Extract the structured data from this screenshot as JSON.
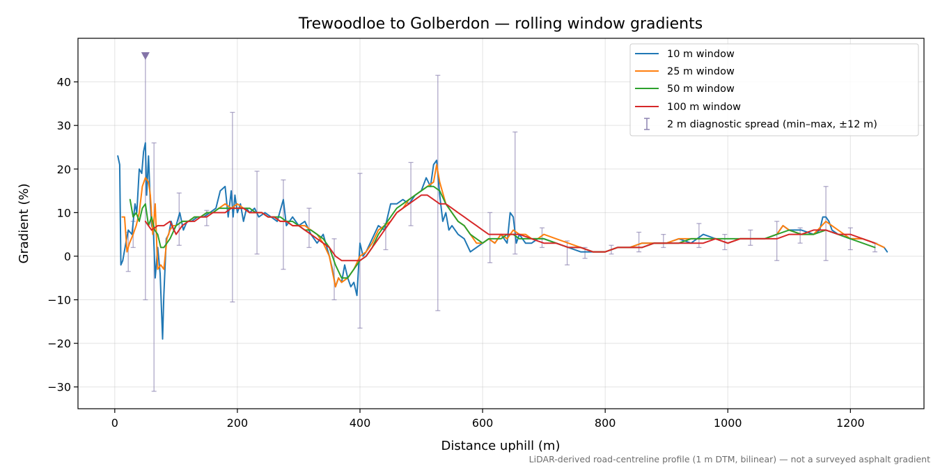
{
  "chart_data": {
    "type": "line",
    "title": "Trewoodloe to Golberdon — rolling window gradients",
    "xlabel": "Distance uphill (m)",
    "ylabel": "Gradient (%)",
    "xlim": [
      -60,
      1320
    ],
    "ylim": [
      -35,
      50
    ],
    "xticks": [
      0,
      200,
      400,
      600,
      800,
      1000,
      1200
    ],
    "xtick_labels": [
      "0",
      "200",
      "400",
      "600",
      "800",
      "1000",
      "1200"
    ],
    "yticks": [
      -30,
      -20,
      -10,
      0,
      10,
      20,
      30,
      40
    ],
    "ytick_labels": [
      "−30",
      "−20",
      "−10",
      "0",
      "10",
      "20",
      "30",
      "40"
    ],
    "grid": true,
    "legend_position": "top-right",
    "footnote": "LiDAR-derived road-centreline profile (1 m DTM, bilinear) — not a surveyed asphalt gradient",
    "colors": {
      "10 m": "#1f77b4",
      "25 m": "#ff7f0e",
      "50 m": "#2ca02c",
      "100 m": "#d62728",
      "spread": "#8c83b0",
      "marker": "#8474a8"
    },
    "series": [
      {
        "name": "10 m window",
        "x": [
          5,
          8,
          10,
          13,
          18,
          22,
          28,
          33,
          36,
          40,
          44,
          47,
          50,
          52,
          55,
          58,
          60,
          63,
          66,
          70,
          74,
          78,
          80,
          84,
          88,
          92,
          96,
          100,
          106,
          112,
          118,
          125,
          135,
          145,
          155,
          165,
          172,
          180,
          185,
          190,
          193,
          196,
          200,
          205,
          210,
          215,
          220,
          228,
          235,
          245,
          255,
          265,
          275,
          280,
          290,
          300,
          310,
          320,
          330,
          340,
          350,
          355,
          360,
          365,
          370,
          375,
          380,
          385,
          390,
          395,
          400,
          405,
          410,
          420,
          430,
          440,
          450,
          460,
          470,
          480,
          490,
          500,
          508,
          515,
          520,
          525,
          530,
          535,
          540,
          545,
          550,
          560,
          570,
          580,
          590,
          600,
          610,
          620,
          630,
          640,
          645,
          650,
          655,
          660,
          670,
          680,
          690,
          700,
          720,
          740,
          760,
          780,
          800,
          820,
          840,
          860,
          880,
          900,
          920,
          940,
          960,
          980,
          1000,
          1020,
          1040,
          1060,
          1080,
          1090,
          1100,
          1120,
          1140,
          1150,
          1155,
          1160,
          1165,
          1170,
          1180,
          1200,
          1220,
          1240,
          1255,
          1260
        ],
        "y": [
          23,
          21,
          -2,
          -1,
          3,
          6,
          5,
          12,
          10,
          20,
          19,
          24,
          26,
          14,
          23,
          12,
          7,
          6,
          -5,
          2,
          -4,
          -19,
          -9,
          4,
          5,
          8,
          6,
          7,
          10,
          6,
          8,
          8,
          9,
          9,
          10,
          11,
          15,
          16,
          9,
          15,
          9,
          14,
          10,
          12,
          8,
          11,
          10,
          11,
          9,
          10,
          9,
          8,
          13,
          7,
          9,
          7,
          8,
          5,
          3,
          5,
          0,
          -3,
          -7,
          -5,
          -6,
          -2,
          -5,
          -7,
          -6,
          -9,
          3,
          0,
          1,
          4,
          7,
          6,
          12,
          12,
          13,
          12,
          14,
          15,
          18,
          16,
          21,
          22,
          14,
          8,
          10,
          6,
          7,
          5,
          4,
          1,
          2,
          3,
          4,
          3,
          5,
          3,
          10,
          9,
          3,
          5,
          3,
          3,
          4,
          4,
          3,
          2,
          1,
          1,
          1,
          2,
          2,
          3,
          3,
          3,
          4,
          3,
          5,
          4,
          3,
          4,
          4,
          4,
          5,
          7,
          6,
          6,
          5,
          6,
          9,
          9,
          8,
          6,
          5,
          4,
          4,
          3,
          2,
          1
        ]
      },
      {
        "name": "25 m window",
        "x": [
          12,
          16,
          20,
          24,
          30,
          35,
          40,
          45,
          50,
          55,
          58,
          62,
          66,
          70,
          75,
          80,
          85,
          90,
          95,
          100,
          110,
          120,
          130,
          140,
          150,
          160,
          170,
          180,
          190,
          200,
          210,
          220,
          230,
          240,
          250,
          260,
          270,
          280,
          290,
          300,
          310,
          320,
          330,
          340,
          350,
          360,
          365,
          370,
          380,
          390,
          400,
          410,
          420,
          430,
          440,
          450,
          460,
          470,
          480,
          490,
          500,
          510,
          520,
          525,
          530,
          540,
          550,
          560,
          570,
          580,
          590,
          600,
          610,
          620,
          630,
          640,
          650,
          660,
          670,
          680,
          690,
          700,
          720,
          740,
          760,
          780,
          800,
          820,
          840,
          860,
          880,
          900,
          920,
          940,
          960,
          980,
          1000,
          1020,
          1040,
          1060,
          1080,
          1090,
          1100,
          1120,
          1140,
          1160,
          1180,
          1200,
          1220,
          1240,
          1255
        ],
        "y": [
          9,
          9,
          1,
          3,
          5,
          7,
          10,
          16,
          18,
          17,
          14,
          5,
          12,
          -3,
          -2,
          -3,
          4,
          6,
          7,
          7,
          8,
          8,
          9,
          9,
          10,
          10,
          11,
          12,
          11,
          12,
          11,
          10,
          10,
          10,
          9,
          9,
          8,
          8,
          7,
          7,
          7,
          6,
          5,
          3,
          0,
          -7,
          -5,
          -6,
          -5,
          -3,
          0,
          1,
          3,
          6,
          7,
          8,
          10,
          11,
          13,
          14,
          15,
          16,
          17,
          21,
          17,
          12,
          10,
          8,
          7,
          5,
          3,
          3,
          4,
          3,
          5,
          4,
          6,
          5,
          5,
          4,
          4,
          5,
          4,
          3,
          2,
          1,
          1,
          2,
          2,
          3,
          3,
          3,
          4,
          4,
          4,
          4,
          3,
          4,
          4,
          4,
          5,
          7,
          6,
          5,
          5,
          8,
          6,
          4,
          4,
          3,
          2
        ]
      },
      {
        "name": "50 m window",
        "x": [
          25,
          30,
          35,
          40,
          45,
          50,
          55,
          60,
          65,
          70,
          75,
          80,
          85,
          90,
          100,
          110,
          120,
          130,
          140,
          150,
          160,
          170,
          180,
          190,
          200,
          210,
          220,
          230,
          240,
          250,
          260,
          270,
          280,
          290,
          300,
          310,
          320,
          330,
          340,
          350,
          360,
          370,
          380,
          390,
          400,
          410,
          420,
          430,
          440,
          450,
          460,
          470,
          480,
          490,
          500,
          510,
          520,
          530,
          540,
          550,
          560,
          570,
          580,
          590,
          600,
          610,
          620,
          630,
          640,
          650,
          660,
          670,
          680,
          690,
          700,
          720,
          740,
          760,
          780,
          800,
          820,
          840,
          860,
          880,
          900,
          920,
          940,
          960,
          980,
          1000,
          1020,
          1040,
          1060,
          1080,
          1100,
          1120,
          1140,
          1160,
          1180,
          1200,
          1220,
          1240
        ],
        "y": [
          13,
          9,
          10,
          8,
          11,
          12,
          7,
          9,
          6,
          5,
          2,
          2,
          3,
          4,
          7,
          8,
          8,
          9,
          9,
          10,
          10,
          11,
          11,
          11,
          11,
          11,
          11,
          10,
          10,
          9,
          9,
          9,
          8,
          8,
          7,
          6,
          6,
          5,
          4,
          2,
          -2,
          -5,
          -5,
          -3,
          -1,
          0,
          2,
          5,
          7,
          9,
          11,
          12,
          13,
          14,
          15,
          16,
          16,
          15,
          12,
          10,
          8,
          7,
          5,
          4,
          3,
          4,
          4,
          4,
          5,
          5,
          4,
          4,
          4,
          4,
          4,
          3,
          2,
          2,
          1,
          1,
          2,
          2,
          2,
          3,
          3,
          3,
          4,
          4,
          4,
          4,
          4,
          4,
          4,
          5,
          6,
          5,
          5,
          6,
          5,
          4,
          3,
          2
        ]
      },
      {
        "name": "100 m window",
        "x": [
          50,
          60,
          70,
          80,
          90,
          100,
          110,
          120,
          130,
          140,
          150,
          160,
          170,
          180,
          190,
          200,
          210,
          220,
          230,
          240,
          250,
          260,
          270,
          280,
          290,
          300,
          310,
          320,
          330,
          340,
          350,
          360,
          370,
          380,
          390,
          400,
          410,
          420,
          430,
          440,
          450,
          460,
          470,
          480,
          490,
          500,
          510,
          520,
          530,
          540,
          550,
          560,
          570,
          580,
          590,
          600,
          610,
          620,
          640,
          660,
          680,
          700,
          720,
          740,
          760,
          780,
          800,
          820,
          840,
          860,
          880,
          900,
          920,
          940,
          960,
          980,
          1000,
          1020,
          1040,
          1060,
          1080,
          1100,
          1120,
          1140,
          1160,
          1180,
          1200,
          1220,
          1240
        ],
        "y": [
          8,
          6,
          7,
          7,
          8,
          5,
          7,
          8,
          8,
          9,
          9,
          10,
          10,
          10,
          11,
          11,
          11,
          10,
          10,
          10,
          9,
          9,
          8,
          8,
          7,
          7,
          6,
          5,
          4,
          3,
          2,
          0,
          -1,
          -1,
          -1,
          -1,
          0,
          2,
          4,
          6,
          8,
          10,
          11,
          12,
          13,
          14,
          14,
          13,
          12,
          12,
          11,
          10,
          9,
          8,
          7,
          6,
          5,
          5,
          5,
          5,
          4,
          3,
          3,
          2,
          2,
          1,
          1,
          2,
          2,
          2,
          3,
          3,
          3,
          3,
          3,
          4,
          3,
          4,
          4,
          4,
          4,
          5,
          5,
          6,
          6,
          5,
          5,
          4,
          3
        ]
      }
    ],
    "diagnostic_spread": {
      "label": "2 m diagnostic spread (min–max, ±12 m)",
      "x": [
        22,
        30,
        50,
        64,
        105,
        150,
        192,
        232,
        275,
        317,
        358,
        400,
        442,
        483,
        527,
        612,
        653,
        697,
        738,
        767,
        810,
        855,
        895,
        953,
        995,
        1037,
        1080,
        1118,
        1160,
        1200,
        1240
      ],
      "low": [
        -3.5,
        2,
        -10,
        -31,
        2.5,
        7,
        -10.5,
        0.5,
        -3,
        2,
        -10,
        -16.5,
        1.5,
        7,
        -12.5,
        -1.5,
        0.5,
        2,
        -2,
        -0.5,
        0.5,
        1,
        2,
        2,
        1.5,
        2.5,
        -1,
        3,
        -1,
        1.5,
        1
      ],
      "high": [
        5.5,
        8,
        46,
        26,
        14.5,
        10.5,
        33,
        19.5,
        17.5,
        11,
        4,
        19,
        7.5,
        21.5,
        41.5,
        10,
        28.5,
        6.5,
        3.5,
        2,
        2.5,
        5.5,
        5,
        7.5,
        5,
        6,
        8,
        6.5,
        16,
        6.5,
        3
      ]
    },
    "clipped_marker": {
      "x": 50,
      "y": 46
    }
  }
}
